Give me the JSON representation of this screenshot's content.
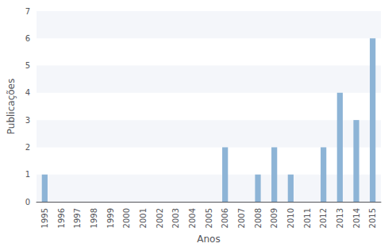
{
  "chart_data": {
    "type": "bar",
    "categories": [
      "1995",
      "1996",
      "1997",
      "1998",
      "1999",
      "2000",
      "2001",
      "2002",
      "2003",
      "2004",
      "2005",
      "2006",
      "2007",
      "2008",
      "2009",
      "2010",
      "2011",
      "2012",
      "2013",
      "2014",
      "2015"
    ],
    "values": [
      1,
      0,
      0,
      0,
      0,
      0,
      0,
      0,
      0,
      0,
      0,
      2,
      0,
      1,
      2,
      1,
      0,
      2,
      4,
      3,
      6
    ],
    "color": "#8db4d6",
    "xlabel": "Anos",
    "ylabel": "Publicações",
    "ylim": [
      0,
      7
    ],
    "yticks": [
      0,
      1,
      2,
      3,
      4,
      5,
      6,
      7
    ],
    "grid": true
  }
}
